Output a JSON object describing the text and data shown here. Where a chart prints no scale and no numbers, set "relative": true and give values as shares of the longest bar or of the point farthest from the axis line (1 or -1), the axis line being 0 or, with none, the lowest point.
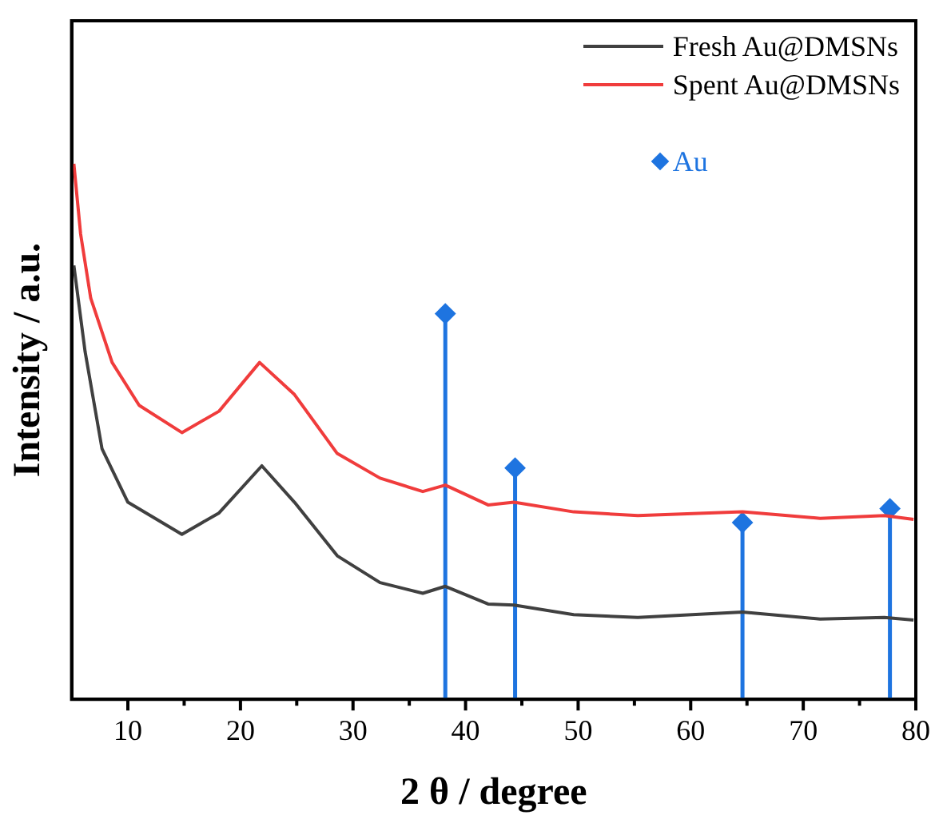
{
  "chart_data": {
    "type": "line",
    "xlabel": "2 θ / degree",
    "ylabel": "Intensity / a.u.",
    "relative": true,
    "xlim": [
      5,
      80
    ],
    "xticks": [
      10,
      {
        "value": 15,
        "label": null
      },
      20,
      {
        "value": 25,
        "label": null
      },
      30,
      {
        "value": 35,
        "label": null
      },
      40,
      {
        "value": 45,
        "label": null
      },
      50,
      {
        "value": 55,
        "label": null
      },
      60,
      {
        "value": 65,
        "label": null
      },
      70,
      {
        "value": 75,
        "label": null
      },
      80
    ],
    "legend": "top right",
    "grid": false,
    "marker": "none",
    "series": [
      {
        "name": "Fresh Au@DMSNs",
        "color": "#404040",
        "x": [
          5.2,
          6.2,
          7.7,
          10.0,
          14.8,
          18.1,
          21.9,
          24.8,
          28.6,
          32.4,
          36.2,
          38.2,
          42.0,
          44.3,
          49.6,
          55.3,
          64.6,
          71.5,
          77.2,
          79.8
        ],
        "values": [
          0.81,
          0.649,
          0.468,
          0.368,
          0.308,
          0.348,
          0.436,
          0.368,
          0.268,
          0.218,
          0.198,
          0.211,
          0.178,
          0.176,
          0.158,
          0.153,
          0.163,
          0.15,
          0.153,
          0.148
        ]
      },
      {
        "name": "Spent Au@DMSNs",
        "color": "#f03c3c",
        "x": [
          5.2,
          5.8,
          6.7,
          8.6,
          11.0,
          14.8,
          18.1,
          21.7,
          24.8,
          28.6,
          32.4,
          36.2,
          38.2,
          42.0,
          44.3,
          49.6,
          55.3,
          64.6,
          71.5,
          77.2,
          79.8
        ],
        "values": [
          1.0,
          0.869,
          0.749,
          0.629,
          0.549,
          0.498,
          0.538,
          0.629,
          0.569,
          0.459,
          0.413,
          0.388,
          0.4,
          0.363,
          0.368,
          0.35,
          0.343,
          0.35,
          0.338,
          0.343,
          0.336
        ]
      },
      {
        "name": "Au",
        "type": "lollipop",
        "marker": "diamond",
        "color": "#1e74e0",
        "x": [
          38.2,
          44.4,
          64.6,
          77.7
        ],
        "values": [
          0.72,
          0.432,
          0.33,
          0.356
        ]
      }
    ]
  }
}
